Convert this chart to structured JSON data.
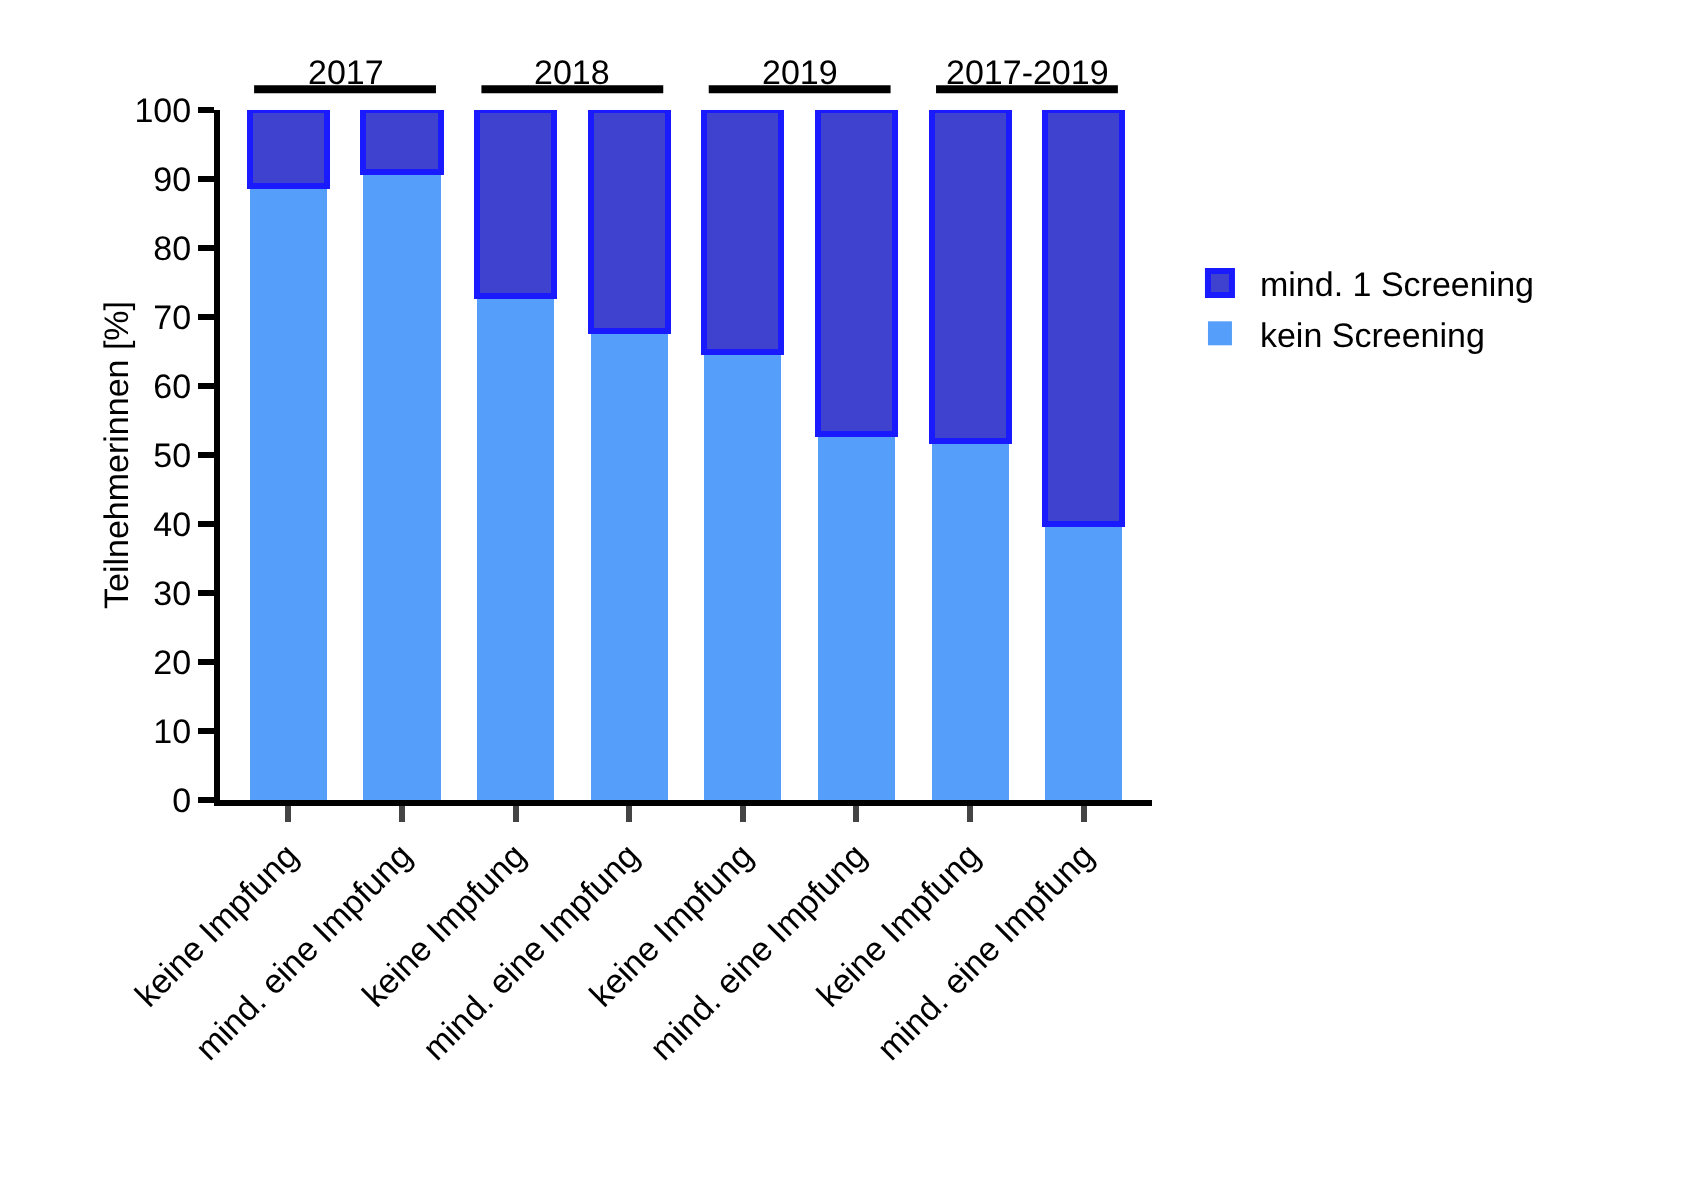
{
  "chart_data": {
    "type": "bar",
    "stacked": true,
    "ylabel": "Teilnehmerinnen [%]",
    "categories": [
      "keine Impfung",
      "mind. eine Impfung",
      "keine Impfung",
      "mind. eine Impfung",
      "keine Impfung",
      "mind. eine Impfung",
      "keine Impfung",
      "mind. eine Impfung"
    ],
    "series": [
      {
        "name": "kein Screening",
        "color": "#559ffa",
        "values": [
          89,
          91,
          73,
          68,
          65,
          53,
          52,
          40
        ]
      },
      {
        "name": "mind. 1 Screening",
        "color": "#3f41cf",
        "values": [
          11,
          9,
          27,
          32,
          35,
          47,
          48,
          60
        ]
      }
    ],
    "annotations": [
      "2017",
      "2018",
      "2019",
      "2017-2019"
    ],
    "ylim": [
      0,
      100
    ],
    "yticks": [
      0,
      10,
      20,
      30,
      40,
      50,
      60,
      70,
      80,
      90,
      100
    ],
    "grid": false,
    "legend": "right"
  }
}
